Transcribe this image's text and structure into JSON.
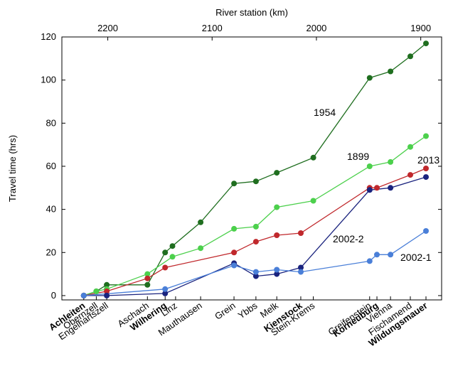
{
  "chart_data": {
    "type": "line",
    "title": "",
    "x_top_label": "River station (km)",
    "ylabel": "Travel time (hrs)",
    "x_range": [
      2244,
      1880
    ],
    "ylim": [
      -2,
      120
    ],
    "y_ticks": [
      0,
      20,
      40,
      60,
      80,
      100,
      120
    ],
    "x_top_ticks": [
      2200,
      2100,
      2000,
      1900
    ],
    "grid": false,
    "stations": [
      {
        "name": "Achleiten",
        "km": 2223,
        "bold": true
      },
      {
        "name": "Obernzell",
        "km": 2211,
        "bold": false
      },
      {
        "name": "Engelhartszell",
        "km": 2201,
        "bold": false
      },
      {
        "name": "Aschach",
        "km": 2162,
        "bold": false
      },
      {
        "name": "Wilhering",
        "km": 2145,
        "bold": true
      },
      {
        "name": "Linz",
        "km": 2135,
        "bold": false
      },
      {
        "name": "Mauthausen",
        "km": 2111,
        "bold": false
      },
      {
        "name": "Grein",
        "km": 2079,
        "bold": false
      },
      {
        "name": "Ybbs",
        "km": 2058,
        "bold": false
      },
      {
        "name": "Melk",
        "km": 2038,
        "bold": false
      },
      {
        "name": "Kienstock",
        "km": 2015,
        "bold": true
      },
      {
        "name": "Stein-Krems",
        "km": 2003,
        "bold": false
      },
      {
        "name": "Greifenstein",
        "km": 1949,
        "bold": false
      },
      {
        "name": "Korneuburg",
        "km": 1942,
        "bold": true
      },
      {
        "name": "Vienna",
        "km": 1929,
        "bold": false
      },
      {
        "name": "Fischamend",
        "km": 1910,
        "bold": false
      },
      {
        "name": "Wildungsmauer",
        "km": 1895,
        "bold": true
      }
    ],
    "series": [
      {
        "name": "1954",
        "color": "#1f6e1f",
        "points": [
          [
            2223,
            0
          ],
          [
            2211,
            2
          ],
          [
            2201,
            5
          ],
          [
            2162,
            5
          ],
          [
            2145,
            20
          ],
          [
            2138,
            23
          ],
          [
            2111,
            34
          ],
          [
            2079,
            52
          ],
          [
            2058,
            53
          ],
          [
            2038,
            57
          ],
          [
            2003,
            64
          ],
          [
            1949,
            101
          ],
          [
            1929,
            104
          ],
          [
            1910,
            111
          ],
          [
            1895,
            117
          ]
        ]
      },
      {
        "name": "1899",
        "color": "#4cd04c",
        "points": [
          [
            2223,
            0
          ],
          [
            2211,
            2
          ],
          [
            2201,
            3
          ],
          [
            2162,
            10
          ],
          [
            2138,
            18
          ],
          [
            2111,
            22
          ],
          [
            2079,
            31
          ],
          [
            2058,
            32
          ],
          [
            2038,
            41
          ],
          [
            2003,
            44
          ],
          [
            1949,
            60
          ],
          [
            1929,
            62
          ],
          [
            1910,
            69
          ],
          [
            1895,
            74
          ]
        ]
      },
      {
        "name": "2013",
        "color": "#c0282c",
        "points": [
          [
            2223,
            0
          ],
          [
            2201,
            2
          ],
          [
            2162,
            8
          ],
          [
            2145,
            13
          ],
          [
            2079,
            20
          ],
          [
            2058,
            25
          ],
          [
            2038,
            28
          ],
          [
            2015,
            29
          ],
          [
            1949,
            50
          ],
          [
            1942,
            50
          ],
          [
            1910,
            56
          ],
          [
            1895,
            59
          ]
        ]
      },
      {
        "name": "2002-2",
        "color": "#1a237e",
        "points": [
          [
            2223,
            0
          ],
          [
            2201,
            0
          ],
          [
            2145,
            1
          ],
          [
            2079,
            15
          ],
          [
            2058,
            9
          ],
          [
            2038,
            10
          ],
          [
            2015,
            13
          ],
          [
            1949,
            49
          ],
          [
            1929,
            50
          ],
          [
            1895,
            55
          ]
        ]
      },
      {
        "name": "2002-1",
        "color": "#4a7fd8",
        "points": [
          [
            2223,
            0
          ],
          [
            2145,
            3
          ],
          [
            2079,
            14
          ],
          [
            2058,
            11
          ],
          [
            2038,
            12
          ],
          [
            2015,
            11
          ],
          [
            1949,
            16
          ],
          [
            1942,
            19
          ],
          [
            1929,
            19
          ],
          [
            1895,
            30
          ]
        ]
      }
    ]
  }
}
